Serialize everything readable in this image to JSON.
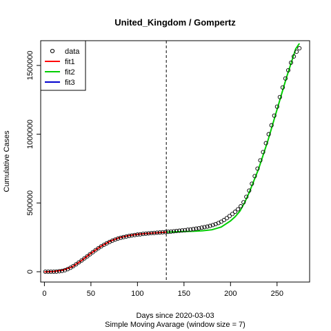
{
  "chart_data": {
    "type": "line",
    "title": "United_Kingdom / Gompertz",
    "xlabel": "Days since 2020-03-03",
    "subtitle": "Simple Moving Avarage (window size = 7)",
    "ylabel": "Cumulative Cases",
    "xlim": [
      -4,
      285
    ],
    "ylim": [
      -75000,
      1680000
    ],
    "x_ticks": [
      0,
      50,
      100,
      150,
      200,
      250
    ],
    "y_ticks": [
      0,
      500000,
      1000000,
      1500000
    ],
    "y_tick_labels": [
      "0",
      "500000",
      "1000000",
      "1500000"
    ],
    "vline": {
      "x": 131,
      "style": "dashed"
    },
    "legend": {
      "position": "top-left",
      "entries": [
        {
          "name": "data",
          "kind": "point",
          "color": "#000000"
        },
        {
          "name": "fit1",
          "kind": "line",
          "color": "#ff0000"
        },
        {
          "name": "fit2",
          "kind": "line",
          "color": "#00cd00"
        },
        {
          "name": "fit3",
          "kind": "line",
          "color": "#0000cd"
        }
      ]
    },
    "series": [
      {
        "name": "data",
        "kind": "points",
        "color": "#000000",
        "x": [
          1,
          4,
          7,
          10,
          13,
          16,
          19,
          22,
          25,
          28,
          31,
          34,
          37,
          40,
          43,
          46,
          49,
          52,
          55,
          58,
          61,
          64,
          67,
          70,
          73,
          76,
          79,
          82,
          85,
          88,
          91,
          94,
          97,
          100,
          103,
          106,
          109,
          112,
          115,
          118,
          121,
          124,
          127,
          130,
          133,
          136,
          139,
          142,
          145,
          148,
          151,
          154,
          157,
          160,
          163,
          166,
          169,
          172,
          175,
          178,
          181,
          184,
          187,
          190,
          193,
          196,
          199,
          202,
          205,
          208,
          211,
          214,
          217,
          220,
          223,
          226,
          229,
          232,
          235,
          238,
          241,
          244,
          247,
          250,
          253,
          256,
          259,
          262,
          265,
          268,
          271,
          274
        ],
        "y": [
          0,
          0,
          0,
          0,
          1000,
          3000,
          6000,
          11000,
          19000,
          29000,
          41000,
          54000,
          68000,
          82000,
          97000,
          112000,
          127000,
          142000,
          157000,
          171000,
          184000,
          196000,
          207000,
          217000,
          226000,
          234000,
          241000,
          247000,
          252000,
          256000,
          260000,
          264000,
          267000,
          270000,
          272000,
          275000,
          277000,
          279000,
          281000,
          282000,
          284000,
          285000,
          287000,
          288000,
          290000,
          292000,
          294000,
          296000,
          298000,
          300000,
          302000,
          305000,
          307000,
          310000,
          313000,
          316000,
          320000,
          324000,
          328000,
          333000,
          339000,
          346000,
          354000,
          364000,
          376000,
          390000,
          405000,
          420000,
          436000,
          454000,
          476000,
          505000,
          545000,
          590000,
          640000,
          695000,
          750000,
          810000,
          870000,
          935000,
          1000000,
          1065000,
          1135000,
          1200000,
          1270000,
          1340000,
          1405000,
          1465000,
          1520000,
          1565000,
          1600000,
          1625000
        ]
      },
      {
        "name": "fit1",
        "kind": "line",
        "color": "#ff0000",
        "x": [
          0,
          10,
          20,
          30,
          40,
          50,
          60,
          70,
          80,
          90,
          100,
          110,
          120,
          131
        ],
        "y": [
          -1000,
          1000,
          11000,
          36000,
          82000,
          134000,
          181000,
          220000,
          246000,
          262000,
          272000,
          278000,
          283000,
          288000
        ]
      },
      {
        "name": "fit2",
        "kind": "line",
        "color": "#00cd00",
        "x": [
          131,
          140,
          150,
          160,
          170,
          180,
          190,
          200,
          205,
          210,
          215,
          220,
          230,
          240,
          250,
          260,
          270,
          274
        ],
        "y": [
          288000,
          290000,
          292000,
          294000,
          298000,
          305000,
          325000,
          370000,
          400000,
          440000,
          500000,
          575000,
          745000,
          950000,
          1180000,
          1410000,
          1620000,
          1660000
        ]
      }
    ]
  }
}
